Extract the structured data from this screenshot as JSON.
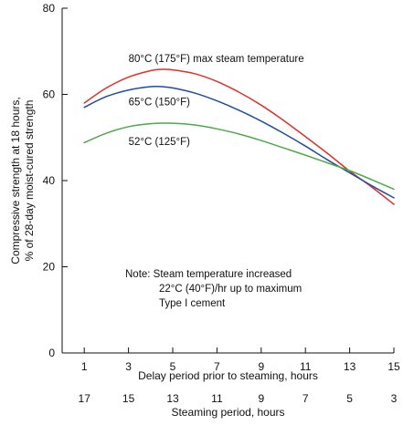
{
  "chart_data": {
    "type": "line",
    "title": "",
    "ylabel": [
      "Compressive strength at 18 hours,",
      "% of 28-day moist-cured strength"
    ],
    "xlabel": "Delay period prior to steaming, hours",
    "xlabel2": "Steaming period, hours",
    "xlim": [
      0,
      15
    ],
    "ylim": [
      0,
      80
    ],
    "xticks": [
      1,
      3,
      5,
      7,
      9,
      11,
      13,
      15
    ],
    "yticks": [
      0,
      20,
      40,
      60,
      80
    ],
    "x2ticks": [
      17,
      15,
      13,
      11,
      9,
      7,
      5,
      3
    ],
    "grid": false,
    "series": [
      {
        "name": "80°C (175°F) max steam temperature",
        "color": "#e0302a",
        "x": [
          1,
          2,
          3,
          4,
          4.5,
          5,
          6,
          7,
          8,
          9,
          10,
          11,
          12,
          13,
          14,
          15
        ],
        "y": [
          58,
          61.5,
          64,
          65.5,
          65.8,
          65.7,
          64.8,
          63,
          60.5,
          57.5,
          54,
          50.2,
          46.3,
          42.2,
          38.5,
          34.5
        ]
      },
      {
        "name": "65°C (150°F)",
        "color": "#1f4e9c",
        "x": [
          1,
          2,
          3,
          4,
          4.5,
          5,
          6,
          7,
          8,
          9,
          10,
          11,
          12,
          13,
          14,
          15
        ],
        "y": [
          57,
          59.5,
          61,
          61.8,
          61.8,
          61.5,
          60.3,
          58.5,
          56.3,
          53.8,
          51,
          48,
          44.8,
          41.8,
          38.8,
          36
        ]
      },
      {
        "name": "52°C (125°F)",
        "color": "#4fa84a",
        "x": [
          1,
          2,
          3,
          4,
          5,
          6,
          7,
          8,
          9,
          10,
          11,
          12,
          13,
          14,
          15
        ],
        "y": [
          48.8,
          51,
          52.5,
          53.2,
          53.3,
          52.9,
          52,
          50.8,
          49.3,
          47.6,
          45.9,
          44.1,
          42.3,
          40.2,
          38
        ]
      }
    ],
    "annotations": [
      {
        "text": "80°C (175°F) max steam temperature",
        "x": 3,
        "y": 67.5
      },
      {
        "text": "65°C (150°F)",
        "x": 3,
        "y": 57.5
      },
      {
        "text": "52°C (125°F)",
        "x": 3,
        "y": 48.3
      }
    ],
    "note": [
      "Note:  Steam temperature increased",
      "22°C (40°F)/hr up to maximum",
      "Type I cement"
    ]
  }
}
